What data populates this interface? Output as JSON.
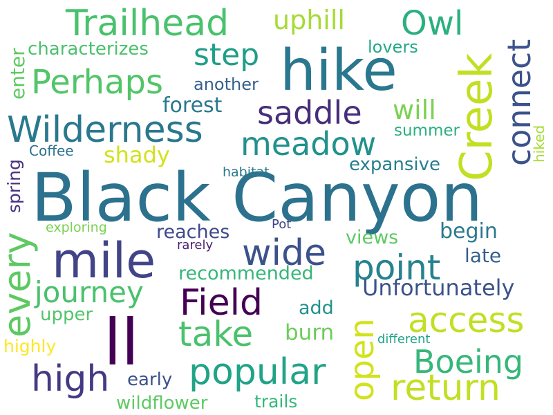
{
  "word_cloud": {
    "words": {
      "black_canyon": "Black Canyon",
      "hike": "hike",
      "ll": "ll",
      "mile": "mile",
      "creek": "Creek",
      "wilderness": "Wilderness",
      "trailhead": "Trailhead",
      "saddle": "saddle",
      "meadow": "meadow",
      "perhaps": "Perhaps",
      "step": "step",
      "owl": "Owl",
      "uphill": "uphill",
      "connect": "connect",
      "wide": "wide",
      "point": "point",
      "every": "every",
      "field": "Field",
      "journey": "journey",
      "take": "take",
      "access": "access",
      "high": "high",
      "popular": "popular",
      "boeing": "Boeing",
      "open": "open",
      "return": "return",
      "unfortunately": "Unfortunately",
      "will": "will",
      "forest": "forest",
      "shady": "shady",
      "expansive": "expansive",
      "summer": "summer",
      "lovers": "lovers",
      "characterizes": "characterizes",
      "another": "another",
      "reaches": "reaches",
      "begin": "begin",
      "views": "views",
      "late": "late",
      "recommended": "recommended",
      "add": "add",
      "burn": "burn",
      "upper": "upper",
      "highly": "highly",
      "early": "early",
      "wildflower": "wildflower",
      "trails": "trails",
      "different": "different",
      "habitat": "habitat",
      "pot": "Pot",
      "rarely": "rarely",
      "exploring": "exploring",
      "coffee": "Coffee",
      "enter": "enter",
      "spring": "spring",
      "hiked": "hiked"
    }
  }
}
